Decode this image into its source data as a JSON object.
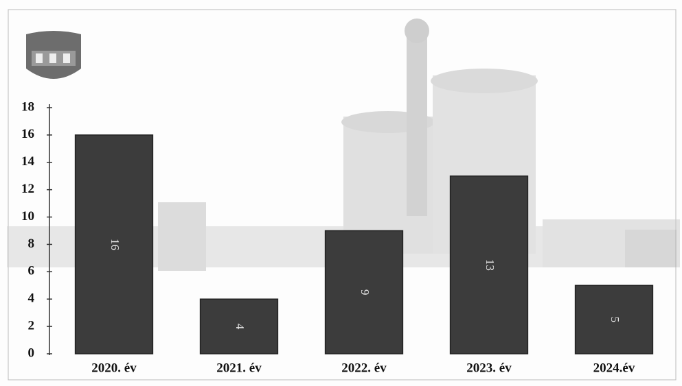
{
  "chart_data": {
    "type": "bar",
    "categories": [
      "2020. év",
      "2021. év",
      "2022. év",
      "2023. év",
      "2024.év"
    ],
    "values": [
      16,
      4,
      9,
      13,
      5
    ],
    "color": "#3c3c3c",
    "ylim": [
      0,
      18
    ],
    "yticks": [
      0,
      2,
      4,
      6,
      8,
      10,
      12,
      14,
      16,
      18
    ],
    "grid": false
  }
}
